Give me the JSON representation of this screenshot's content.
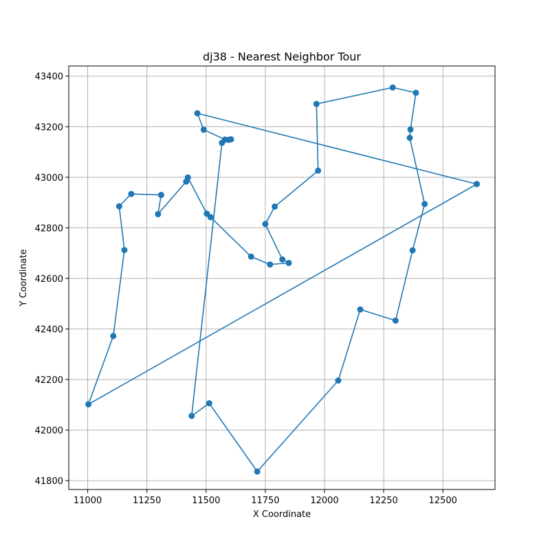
{
  "chart_data": {
    "type": "line",
    "title": "dj38 - Nearest Neighbor Tour",
    "xlabel": "X Coordinate",
    "ylabel": "Y Coordinate",
    "xlim": [
      10920,
      12720
    ],
    "ylim": [
      41765,
      43440
    ],
    "xticks": [
      11000,
      11250,
      11500,
      11750,
      12000,
      12250,
      12500
    ],
    "yticks": [
      41800,
      42000,
      42200,
      42400,
      42600,
      42800,
      43000,
      43200,
      43400
    ],
    "grid": true,
    "legend": "none",
    "series": [
      {
        "color": "#1f77b4",
        "marker": "circle",
        "x": [
          12643,
          11463,
          11490,
          11580,
          11605,
          11595,
          11567,
          11439,
          11513,
          11716,
          12058,
          12151,
          12300,
          12372,
          12423,
          12360,
          12363,
          12386,
          12288,
          11966,
          11973,
          11790,
          11750,
          11822,
          11849,
          11770,
          11690,
          11519,
          11503,
          11423,
          11416,
          11297,
          11310,
          11184,
          11133,
          11155,
          11108,
          11003,
          12643
        ],
        "y": [
          42973,
          43253,
          43188,
          43149,
          43150,
          43148,
          43136,
          42056,
          42106,
          41836,
          42196,
          42477,
          42433,
          42711,
          42894,
          43156,
          43189,
          43334,
          43355,
          43290,
          43026,
          42884,
          42815,
          42675,
          42661,
          42655,
          42686,
          42842,
          42856,
          42999,
          42983,
          42854,
          42930,
          42934,
          42885,
          42712,
          42372,
          42102,
          42973
        ]
      }
    ]
  }
}
